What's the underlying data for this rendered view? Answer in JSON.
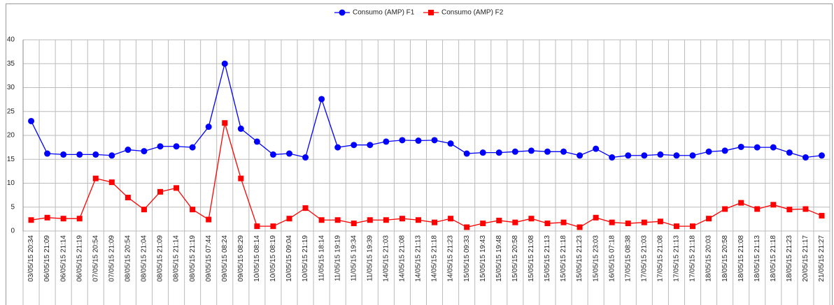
{
  "chart_data": {
    "type": "line",
    "categories": [
      "03/05/15 20:34",
      "06/05/15 21:09",
      "06/05/15 21:14",
      "06/05/15 21:19",
      "07/05/15 20:54",
      "07/05/15 21:09",
      "08/05/15 20:54",
      "08/05/15 21:04",
      "08/05/15 21:09",
      "08/05/15 21:14",
      "08/05/15 21:19",
      "09/05/15 07:44",
      "09/05/15 08:24",
      "09/05/15 08:29",
      "10/05/15 08:14",
      "10/05/15 08:19",
      "10/05/15 09:04",
      "10/05/15 21:19",
      "11/05/15 18:14",
      "11/05/15 19:19",
      "11/05/15 19:34",
      "11/05/15 19:39",
      "14/05/15 21:03",
      "14/05/15 21:08",
      "14/05/15 21:13",
      "14/05/15 21:18",
      "14/05/15 21:23",
      "15/05/15 09:33",
      "15/05/15 19:43",
      "15/05/15 19:48",
      "15/05/15 20:58",
      "15/05/15 21:08",
      "15/05/15 21:13",
      "15/05/15 21:18",
      "15/05/15 21:23",
      "15/05/15 23:03",
      "16/05/15 07:18",
      "17/05/15 08:38",
      "17/05/15 21:03",
      "17/05/15 21:08",
      "17/05/15 21:13",
      "17/05/15 21:18",
      "18/05/15 20:03",
      "18/05/15 20:58",
      "18/05/15 21:08",
      "18/05/15 21:13",
      "18/05/15 21:18",
      "18/05/15 21:23",
      "20/05/15 21:17",
      "21/05/15 21:27"
    ],
    "series": [
      {
        "name": "Consumo (AMP) F1",
        "color": "#0000ff",
        "marker": "circle",
        "values": [
          23,
          16.2,
          16,
          16,
          16,
          15.8,
          17,
          16.7,
          17.7,
          17.7,
          17.5,
          21.8,
          35,
          21.4,
          18.7,
          16,
          16.2,
          15.4,
          27.6,
          17.5,
          18,
          18,
          18.7,
          19,
          18.9,
          19,
          18.3,
          16.2,
          16.4,
          16.4,
          16.6,
          16.8,
          16.6,
          16.6,
          15.8,
          17.2,
          15.4,
          15.8,
          15.8,
          16,
          15.8,
          15.8,
          16.6,
          16.8,
          17.6,
          17.5,
          17.5,
          16.4,
          15.4,
          15.8
        ]
      },
      {
        "name": "Consumo (AMP) F2",
        "color": "#ff0000",
        "marker": "square",
        "values": [
          2.3,
          2.8,
          2.6,
          2.6,
          11,
          10.2,
          7,
          4.5,
          8.2,
          9,
          4.5,
          2.4,
          22.6,
          11,
          1,
          1,
          2.6,
          4.8,
          2.3,
          2.3,
          1.6,
          2.3,
          2.3,
          2.6,
          2.3,
          1.8,
          2.6,
          0.8,
          1.6,
          2.2,
          1.8,
          2.6,
          1.6,
          1.8,
          0.8,
          2.8,
          1.8,
          1.6,
          1.8,
          2,
          1,
          1,
          2.6,
          4.6,
          5.9,
          4.6,
          5.5,
          4.5,
          4.6,
          3.2
        ]
      }
    ],
    "ylim": [
      0,
      40
    ],
    "yticks": [
      0,
      5,
      10,
      15,
      20,
      25,
      30,
      35,
      40
    ],
    "grid": true
  }
}
